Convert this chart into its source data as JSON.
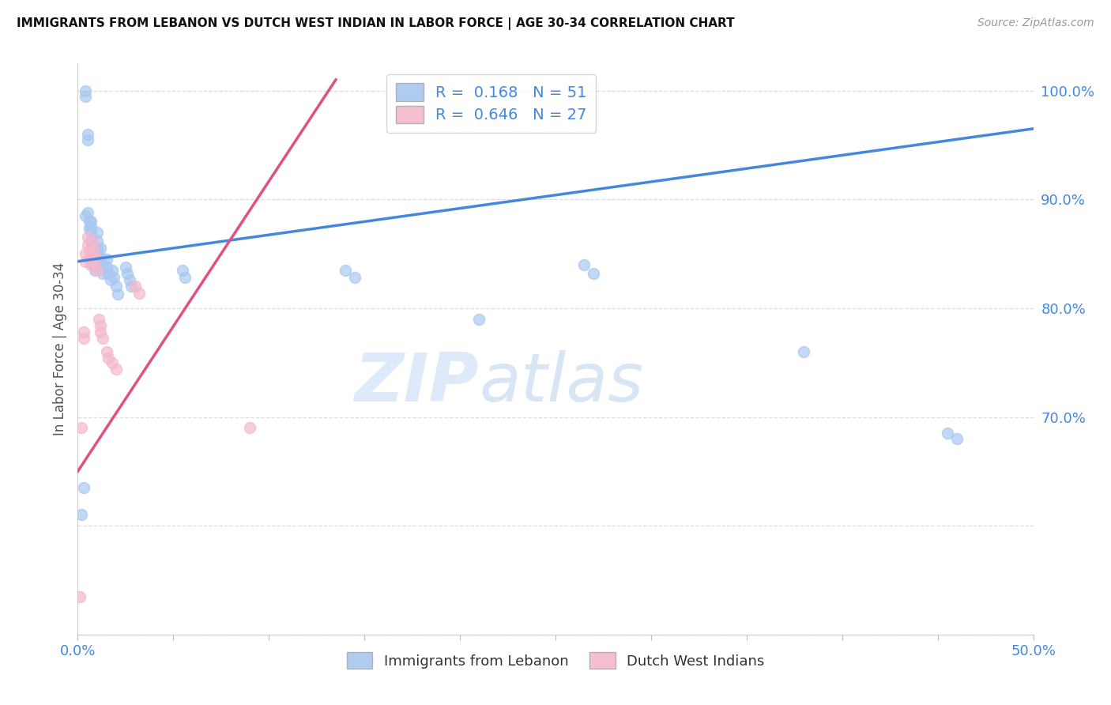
{
  "title": "IMMIGRANTS FROM LEBANON VS DUTCH WEST INDIAN IN LABOR FORCE | AGE 30-34 CORRELATION CHART",
  "source": "Source: ZipAtlas.com",
  "ylabel": "In Labor Force | Age 30-34",
  "xlim": [
    0.0,
    0.5
  ],
  "ylim": [
    0.5,
    1.025
  ],
  "xticks": [
    0.0,
    0.05,
    0.1,
    0.15,
    0.2,
    0.25,
    0.3,
    0.35,
    0.4,
    0.45,
    0.5
  ],
  "xticklabels": [
    "0.0%",
    "",
    "",
    "",
    "",
    "",
    "",
    "",
    "",
    "",
    "50.0%"
  ],
  "yticks": [
    0.5,
    0.6,
    0.7,
    0.8,
    0.9,
    1.0
  ],
  "yticklabels": [
    "",
    "",
    "70.0%",
    "80.0%",
    "90.0%",
    "100.0%"
  ],
  "blue_R": 0.168,
  "blue_N": 51,
  "pink_R": 0.646,
  "pink_N": 27,
  "legend1": "Immigrants from Lebanon",
  "legend2": "Dutch West Indians",
  "watermark_zip": "ZIP",
  "watermark_atlas": "atlas",
  "blue_color": "#A8C8F0",
  "pink_color": "#F5B8CB",
  "blue_line_color": "#4488DD",
  "pink_line_color": "#E05080",
  "blue_scatter_x": [
    0.002,
    0.003,
    0.004,
    0.004,
    0.004,
    0.005,
    0.005,
    0.005,
    0.006,
    0.006,
    0.007,
    0.007,
    0.007,
    0.007,
    0.007,
    0.008,
    0.008,
    0.008,
    0.008,
    0.009,
    0.01,
    0.01,
    0.01,
    0.01,
    0.011,
    0.012,
    0.012,
    0.013,
    0.013,
    0.015,
    0.015,
    0.016,
    0.017,
    0.018,
    0.019,
    0.02,
    0.021,
    0.025,
    0.026,
    0.027,
    0.028,
    0.055,
    0.056,
    0.14,
    0.145,
    0.21,
    0.265,
    0.27,
    0.38,
    0.455,
    0.46
  ],
  "blue_scatter_y": [
    0.61,
    0.635,
    1.0,
    0.995,
    0.885,
    0.96,
    0.955,
    0.888,
    0.88,
    0.873,
    0.88,
    0.875,
    0.87,
    0.862,
    0.855,
    0.858,
    0.852,
    0.846,
    0.84,
    0.835,
    0.87,
    0.862,
    0.855,
    0.847,
    0.84,
    0.855,
    0.847,
    0.84,
    0.832,
    0.845,
    0.838,
    0.832,
    0.826,
    0.835,
    0.828,
    0.82,
    0.813,
    0.838,
    0.832,
    0.826,
    0.82,
    0.835,
    0.828,
    0.835,
    0.828,
    0.79,
    0.84,
    0.832,
    0.76,
    0.685,
    0.68
  ],
  "pink_scatter_x": [
    0.001,
    0.002,
    0.003,
    0.003,
    0.004,
    0.004,
    0.005,
    0.005,
    0.006,
    0.006,
    0.007,
    0.008,
    0.008,
    0.009,
    0.009,
    0.01,
    0.011,
    0.012,
    0.012,
    0.013,
    0.015,
    0.016,
    0.018,
    0.02,
    0.03,
    0.032,
    0.09
  ],
  "pink_scatter_y": [
    0.535,
    0.69,
    0.778,
    0.772,
    0.85,
    0.843,
    0.865,
    0.858,
    0.852,
    0.846,
    0.84,
    0.86,
    0.853,
    0.848,
    0.841,
    0.835,
    0.79,
    0.784,
    0.778,
    0.772,
    0.76,
    0.754,
    0.75,
    0.744,
    0.82,
    0.814,
    0.69
  ],
  "blue_line_x0": 0.0,
  "blue_line_x1": 0.5,
  "blue_line_y0": 0.843,
  "blue_line_y1": 0.965,
  "pink_line_x0": 0.0,
  "pink_line_x1": 0.135,
  "pink_line_y0": 0.65,
  "pink_line_y1": 1.01,
  "grid_color": "#DDDDDD",
  "background_color": "#FFFFFF"
}
